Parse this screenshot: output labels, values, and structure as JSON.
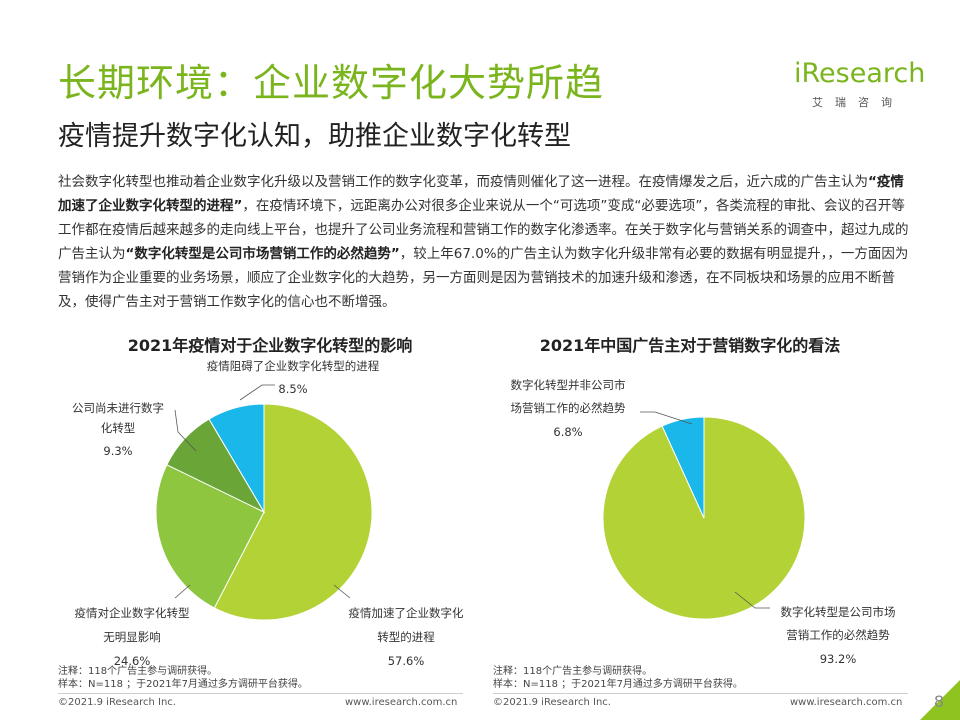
{
  "header": {
    "title": "长期环境：企业数字化大势所趋",
    "subtitle": "疫情提升数字化认知，助推企业数字化转型"
  },
  "logo": {
    "word": "iResearch",
    "cn": "艾瑞咨询"
  },
  "body": {
    "t1": "社会数字化转型也推动着企业数字化升级以及营销工作的数字化变革，而疫情则催化了这一进程。在疫情爆发之后，近六成的广告主认为",
    "b1": "“疫情加速了企业数字化转型的进程”",
    "t2": "，在疫情环境下，远距离办公对很多企业来说从一个“可选项”变成“必要选项”，各类流程的审批、会议的召开等工作都在疫情后越来越多的走向线上平台，也提升了公司业务流程和营销工作的数字化渗透率。在关于数字化与营销关系的调查中，超过九成的广告主认为",
    "b2": "“数字化转型是公司市场营销工作的必然趋势”",
    "t3": "，较上年67.0%的广告主认为数字化升级非常有必要的数据有明显提升，，一方面因为营销作为企业重要的业务场景，顺应了企业数字化的大趋势，另一方面则是因为营销技术的加速升级和渗透，在不同板块和场景的应用不断普及，使得广告主对于营销工作数字化的信心也不断增强。"
  },
  "chart_data": [
    {
      "type": "pie",
      "title": "2021年疫情对于企业数字化转型的影响",
      "slices": [
        {
          "label": "疫情加速了企业数字化转型的进程",
          "value": 57.6,
          "display": "57.6%",
          "color": "#b2d235"
        },
        {
          "label": "疫情对企业数字化转型无明显影响",
          "value": 24.6,
          "display": "24.6%",
          "color": "#8ec63f"
        },
        {
          "label": "公司尚未进行数字化转型",
          "value": 9.3,
          "display": "9.3%",
          "color": "#6aa537"
        },
        {
          "label": "疫情阻碍了企业数字化转型的进程",
          "value": 8.5,
          "display": "8.5%",
          "color": "#1ab7ea"
        }
      ]
    },
    {
      "type": "pie",
      "title": "2021年中国广告主对于营销数字化的看法",
      "slices": [
        {
          "label": "数字化转型是公司市场营销工作的必然趋势",
          "value": 93.2,
          "display": "93.2%",
          "color": "#b2d235"
        },
        {
          "label": "数字化转型并非公司市场营销工作的必然趋势",
          "value": 6.8,
          "display": "6.8%",
          "color": "#1ab7ea"
        }
      ]
    }
  ],
  "labels": {
    "c1_s1_l1": "疫情加速了企业数字化",
    "c1_s1_l2": "转型的进程",
    "c1_s2_l1": "疫情对企业数字化转型",
    "c1_s2_l2": "无明显影响",
    "c1_s3_l1": "公司尚未进行数字",
    "c1_s3_l2": "化转型",
    "c1_s4_l1": "疫情阻碍了企业数字化转型的进程",
    "c2_s1_l1": "数字化转型是公司市场",
    "c2_s1_l2": "营销工作的必然趋势",
    "c2_s2_l1": "数字化转型并非公司市",
    "c2_s2_l2": "场营销工作的必然趋势"
  },
  "notes": {
    "left_1": "注释：118个广告主参与调研获得。",
    "left_2": "样本：N=118 ；于2021年7月通过多方调研平台获得。",
    "right_1": "注释：118个广告主参与调研获得。",
    "right_2": "样本：N=118 ；于2021年7月通过多方调研平台获得。"
  },
  "footer": {
    "copyright_left": "©2021.9 iResearch Inc.",
    "url_left": "www.iresearch.com.cn",
    "copyright_right": "©2021.9 iResearch Inc.",
    "url_right": "www.iresearch.com.cn",
    "page": "8"
  }
}
